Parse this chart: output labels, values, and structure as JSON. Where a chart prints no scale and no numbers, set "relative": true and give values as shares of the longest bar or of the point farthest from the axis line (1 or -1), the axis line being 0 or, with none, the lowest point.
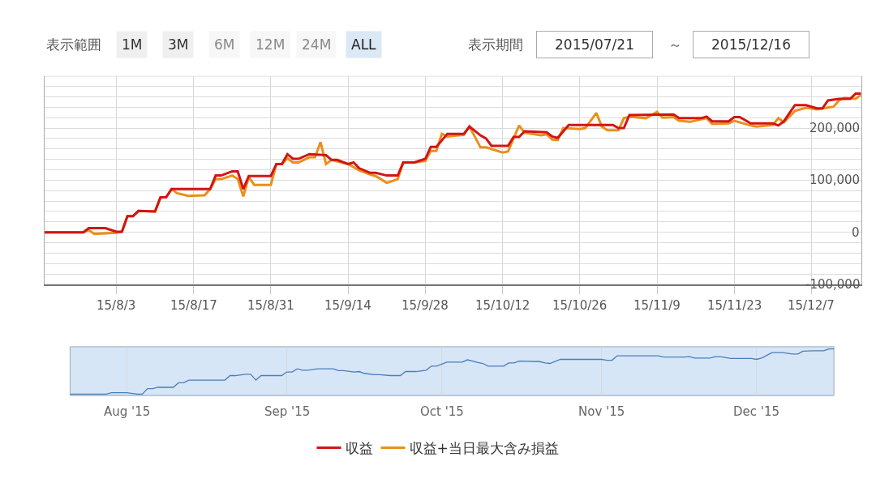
{
  "chart_data": [
    {
      "type": "line",
      "annotations": [
        "表示範囲",
        "1M",
        "3M",
        "6M",
        "12M",
        "24M",
        "ALL",
        "表示期間",
        "2015/07/21",
        "～",
        "2015/12/16"
      ],
      "xlim": [
        "2015-07-21",
        "2015-12-16"
      ],
      "xticks": [
        {
          "value": "2015-08-03",
          "label": "15/8/3"
        },
        {
          "value": "2015-08-17",
          "label": "15/8/17"
        },
        {
          "value": "2015-08-31",
          "label": "15/8/31"
        },
        {
          "value": "2015-09-14",
          "label": "15/9/14"
        },
        {
          "value": "2015-09-28",
          "label": "15/9/28"
        },
        {
          "value": "2015-10-12",
          "label": "15/10/12"
        },
        {
          "value": "2015-10-26",
          "label": "15/10/26"
        },
        {
          "value": "2015-11-09",
          "label": "15/11/9"
        },
        {
          "value": "2015-11-23",
          "label": "15/11/23"
        },
        {
          "value": "2015-12-07",
          "label": "15/12/7"
        }
      ],
      "ylim": [
        -100000,
        300000
      ],
      "yticks": [
        {
          "value": -100000,
          "label": "-100,000"
        },
        {
          "value": -80000,
          "label": null
        },
        {
          "value": -60000,
          "label": null
        },
        {
          "value": -40000,
          "label": null
        },
        {
          "value": -20000,
          "label": null
        },
        {
          "value": 0,
          "label": "0"
        },
        {
          "value": 20000,
          "label": null
        },
        {
          "value": 40000,
          "label": null
        },
        {
          "value": 60000,
          "label": null
        },
        {
          "value": 80000,
          "label": null
        },
        {
          "value": 100000,
          "label": "100,000"
        },
        {
          "value": 120000,
          "label": null
        },
        {
          "value": 140000,
          "label": null
        },
        {
          "value": 160000,
          "label": null
        },
        {
          "value": 180000,
          "label": null
        },
        {
          "value": 200000,
          "label": "200,000"
        },
        {
          "value": 220000,
          "label": null
        },
        {
          "value": 240000,
          "label": null
        },
        {
          "value": 260000,
          "label": null
        },
        {
          "value": 280000,
          "label": null
        },
        {
          "value": 300000,
          "label": null
        }
      ],
      "grid": true,
      "legend": "bottom",
      "series": [
        {
          "name": "収益+当日最大含み損益",
          "color": "#e8901a",
          "x": [
            "2015-07-21",
            "2015-07-28",
            "2015-07-29",
            "2015-07-30",
            "2015-08-03",
            "2015-08-04",
            "2015-08-05",
            "2015-08-06",
            "2015-08-07",
            "2015-08-10",
            "2015-08-11",
            "2015-08-12",
            "2015-08-13",
            "2015-08-14",
            "2015-08-16",
            "2015-08-19",
            "2015-08-20",
            "2015-08-21",
            "2015-08-22",
            "2015-08-24",
            "2015-08-25",
            "2015-08-26",
            "2015-08-27",
            "2015-08-28",
            "2015-08-31",
            "2015-09-01",
            "2015-09-02",
            "2015-09-03",
            "2015-09-04",
            "2015-09-05",
            "2015-09-07",
            "2015-09-08",
            "2015-09-09",
            "2015-09-10",
            "2015-09-11",
            "2015-09-14",
            "2015-09-16",
            "2015-09-18",
            "2015-09-19",
            "2015-09-21",
            "2015-09-23",
            "2015-09-24",
            "2015-09-26",
            "2015-09-28",
            "2015-09-29",
            "2015-09-30",
            "2015-10-01",
            "2015-10-02",
            "2015-10-05",
            "2015-10-06",
            "2015-10-08",
            "2015-10-09",
            "2015-10-12",
            "2015-10-13",
            "2015-10-15",
            "2015-10-16",
            "2015-10-19",
            "2015-10-20",
            "2015-10-21",
            "2015-10-22",
            "2015-10-23",
            "2015-10-26",
            "2015-10-27",
            "2015-10-29",
            "2015-10-30",
            "2015-10-31",
            "2015-11-02",
            "2015-11-03",
            "2015-11-04",
            "2015-11-07",
            "2015-11-09",
            "2015-11-10",
            "2015-11-12",
            "2015-11-13",
            "2015-11-15",
            "2015-11-18",
            "2015-11-19",
            "2015-11-22",
            "2015-11-23",
            "2015-11-26",
            "2015-11-27",
            "2015-11-30",
            "2015-12-01",
            "2015-12-02",
            "2015-12-04",
            "2015-12-06",
            "2015-12-08",
            "2015-12-11",
            "2015-12-12",
            "2015-12-13",
            "2015-12-15",
            "2015-12-16"
          ],
          "values": [
            0,
            0,
            4000,
            -3000,
            -1000,
            1000,
            31000,
            31000,
            41000,
            40000,
            67000,
            67000,
            83000,
            75000,
            70000,
            71000,
            83000,
            102000,
            102000,
            109000,
            102000,
            69000,
            106000,
            91000,
            91000,
            131000,
            131000,
            142000,
            134000,
            134000,
            144000,
            144000,
            173000,
            131000,
            139000,
            131000,
            119000,
            111000,
            108000,
            95000,
            102000,
            134000,
            134000,
            137000,
            156000,
            156000,
            189000,
            184000,
            187000,
            203000,
            163000,
            163000,
            153000,
            155000,
            205000,
            191000,
            186000,
            188000,
            178000,
            177000,
            200000,
            198000,
            200000,
            229000,
            203000,
            196000,
            196000,
            219000,
            222000,
            219000,
            231000,
            220000,
            221000,
            214000,
            212000,
            219000,
            208000,
            209000,
            214000,
            205000,
            203000,
            206000,
            219000,
            211000,
            233000,
            239000,
            236000,
            241000,
            253000,
            258000,
            256000,
            264000
          ]
        },
        {
          "name": "収益",
          "color": "#d41414",
          "x": [
            "2015-07-21",
            "2015-07-28",
            "2015-07-29",
            "2015-08-01",
            "2015-08-03",
            "2015-08-04",
            "2015-08-05",
            "2015-08-06",
            "2015-08-07",
            "2015-08-10",
            "2015-08-11",
            "2015-08-12",
            "2015-08-13",
            "2015-08-20",
            "2015-08-21",
            "2015-08-22",
            "2015-08-24",
            "2015-08-25",
            "2015-08-26",
            "2015-08-27",
            "2015-08-31",
            "2015-09-01",
            "2015-09-02",
            "2015-09-03",
            "2015-09-04",
            "2015-09-05",
            "2015-09-07",
            "2015-09-10",
            "2015-09-11",
            "2015-09-12",
            "2015-09-14",
            "2015-09-15",
            "2015-09-16",
            "2015-09-18",
            "2015-09-19",
            "2015-09-21",
            "2015-09-23",
            "2015-09-24",
            "2015-09-26",
            "2015-09-28",
            "2015-09-29",
            "2015-09-30",
            "2015-10-02",
            "2015-10-05",
            "2015-10-06",
            "2015-10-08",
            "2015-10-09",
            "2015-10-10",
            "2015-10-13",
            "2015-10-14",
            "2015-10-15",
            "2015-10-16",
            "2015-10-20",
            "2015-10-21",
            "2015-10-22",
            "2015-10-24",
            "2015-11-01",
            "2015-11-02",
            "2015-11-03",
            "2015-11-04",
            "2015-11-12",
            "2015-11-13",
            "2015-11-17",
            "2015-11-18",
            "2015-11-19",
            "2015-11-22",
            "2015-11-23",
            "2015-11-24",
            "2015-11-26",
            "2015-11-30",
            "2015-12-01",
            "2015-12-02",
            "2015-12-04",
            "2015-12-06",
            "2015-12-08",
            "2015-12-09",
            "2015-12-10",
            "2015-12-12",
            "2015-12-14",
            "2015-12-15",
            "2015-12-16"
          ],
          "values": [
            0,
            0,
            8000,
            8000,
            1000,
            1000,
            31000,
            31000,
            41000,
            40000,
            67000,
            67000,
            83000,
            83000,
            109000,
            109000,
            117000,
            117000,
            83000,
            108000,
            108000,
            131000,
            131000,
            150000,
            141000,
            141000,
            150000,
            148000,
            139000,
            139000,
            131000,
            134000,
            123000,
            114000,
            114000,
            109000,
            109000,
            134000,
            134000,
            141000,
            164000,
            164000,
            189000,
            189000,
            203000,
            186000,
            180000,
            166000,
            166000,
            183000,
            183000,
            194000,
            192000,
            184000,
            181000,
            206000,
            206000,
            200000,
            200000,
            225000,
            226000,
            219000,
            219000,
            222000,
            213000,
            213000,
            221000,
            221000,
            209000,
            209000,
            205000,
            213000,
            244000,
            244000,
            238000,
            238000,
            253000,
            256000,
            256000,
            266000,
            266000
          ]
        }
      ]
    },
    {
      "type": "line",
      "xlim": [
        "2015-07-21",
        "2015-12-16"
      ],
      "xticks": [
        {
          "value": "2015-08-01",
          "label": "Aug '15"
        },
        {
          "value": "2015-09-01",
          "label": "Sep '15"
        },
        {
          "value": "2015-10-01",
          "label": "Oct '15"
        },
        {
          "value": "2015-11-01",
          "label": "Nov '15"
        },
        {
          "value": "2015-12-01",
          "label": "Dec '15"
        }
      ],
      "relative": true,
      "tick_labels": "x",
      "grid": "x",
      "series": [
        {
          "color": "#4a7ebb",
          "x": [
            "2015-07-21",
            "2015-07-28",
            "2015-07-29",
            "2015-08-01",
            "2015-08-03",
            "2015-08-04",
            "2015-08-05",
            "2015-08-06",
            "2015-08-07",
            "2015-08-10",
            "2015-08-11",
            "2015-08-12",
            "2015-08-13",
            "2015-08-20",
            "2015-08-21",
            "2015-08-22",
            "2015-08-24",
            "2015-08-25",
            "2015-08-26",
            "2015-08-27",
            "2015-08-31",
            "2015-09-01",
            "2015-09-02",
            "2015-09-03",
            "2015-09-04",
            "2015-09-05",
            "2015-09-07",
            "2015-09-10",
            "2015-09-11",
            "2015-09-12",
            "2015-09-14",
            "2015-09-15",
            "2015-09-16",
            "2015-09-18",
            "2015-09-19",
            "2015-09-21",
            "2015-09-23",
            "2015-09-24",
            "2015-09-26",
            "2015-09-28",
            "2015-09-29",
            "2015-09-30",
            "2015-10-02",
            "2015-10-05",
            "2015-10-06",
            "2015-10-08",
            "2015-10-09",
            "2015-10-10",
            "2015-10-13",
            "2015-10-14",
            "2015-10-15",
            "2015-10-16",
            "2015-10-20",
            "2015-10-21",
            "2015-10-22",
            "2015-10-24",
            "2015-11-01",
            "2015-11-02",
            "2015-11-03",
            "2015-11-04",
            "2015-11-12",
            "2015-11-13",
            "2015-11-17",
            "2015-11-18",
            "2015-11-19",
            "2015-11-22",
            "2015-11-23",
            "2015-11-24",
            "2015-11-26",
            "2015-11-30",
            "2015-12-01",
            "2015-12-02",
            "2015-12-04",
            "2015-12-06",
            "2015-12-08",
            "2015-12-09",
            "2015-12-10",
            "2015-12-12",
            "2015-12-14",
            "2015-12-15",
            "2015-12-16"
          ],
          "values": [
            0,
            0,
            0.03,
            0.03,
            0,
            0,
            0.12,
            0.12,
            0.15,
            0.15,
            0.25,
            0.25,
            0.31,
            0.31,
            0.41,
            0.41,
            0.44,
            0.44,
            0.31,
            0.41,
            0.41,
            0.49,
            0.49,
            0.56,
            0.53,
            0.53,
            0.56,
            0.56,
            0.52,
            0.52,
            0.49,
            0.5,
            0.46,
            0.43,
            0.43,
            0.41,
            0.41,
            0.5,
            0.5,
            0.53,
            0.62,
            0.62,
            0.71,
            0.71,
            0.76,
            0.7,
            0.68,
            0.62,
            0.62,
            0.69,
            0.69,
            0.73,
            0.72,
            0.69,
            0.68,
            0.77,
            0.77,
            0.75,
            0.75,
            0.85,
            0.85,
            0.82,
            0.82,
            0.83,
            0.8,
            0.8,
            0.83,
            0.83,
            0.79,
            0.79,
            0.77,
            0.8,
            0.92,
            0.92,
            0.89,
            0.89,
            0.95,
            0.96,
            0.96,
            1,
            1
          ]
        }
      ]
    }
  ]
}
